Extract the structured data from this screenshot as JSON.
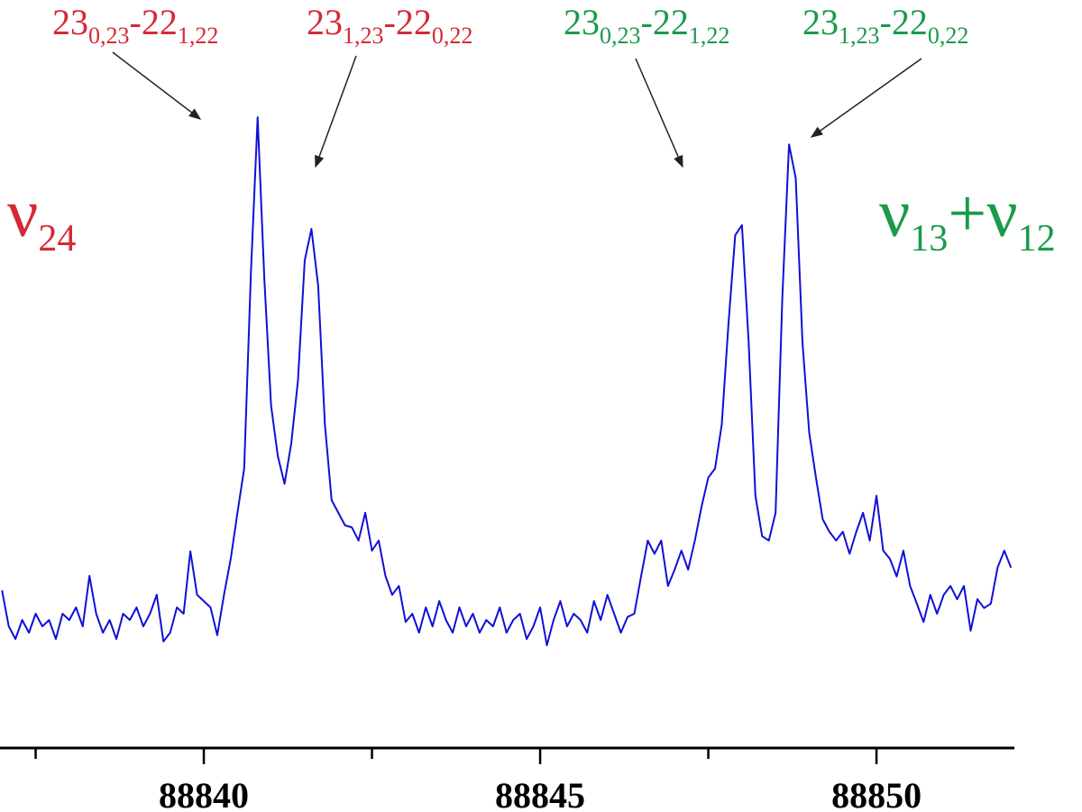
{
  "chart_data": {
    "type": "line",
    "x": [
      88837.0,
      88837.1,
      88837.2,
      88837.3,
      88837.4,
      88837.5,
      88837.6,
      88837.7,
      88837.8,
      88837.9,
      88838.0,
      88838.1,
      88838.2,
      88838.3,
      88838.4,
      88838.5,
      88838.6,
      88838.7,
      88838.8,
      88838.9,
      88839.0,
      88839.1,
      88839.2,
      88839.3,
      88839.4,
      88839.5,
      88839.6,
      88839.7,
      88839.8,
      88839.9,
      88840.0,
      88840.1,
      88840.2,
      88840.3,
      88840.4,
      88840.5,
      88840.6,
      88840.7,
      88840.8,
      88840.9,
      88841.0,
      88841.1,
      88841.2,
      88841.3,
      88841.4,
      88841.5,
      88841.6,
      88841.7,
      88841.8,
      88841.9,
      88842.0,
      88842.1,
      88842.2,
      88842.3,
      88842.4,
      88842.5,
      88842.6,
      88842.7,
      88842.8,
      88842.9,
      88843.0,
      88843.1,
      88843.2,
      88843.3,
      88843.4,
      88843.5,
      88843.6,
      88843.7,
      88843.8,
      88843.9,
      88844.0,
      88844.1,
      88844.2,
      88844.3,
      88844.4,
      88844.5,
      88844.6,
      88844.7,
      88844.8,
      88844.9,
      88845.0,
      88845.1,
      88845.2,
      88845.3,
      88845.4,
      88845.5,
      88845.6,
      88845.7,
      88845.8,
      88845.9,
      88846.0,
      88846.1,
      88846.2,
      88846.3,
      88846.4,
      88846.5,
      88846.6,
      88846.7,
      88846.8,
      88846.9,
      88847.0,
      88847.1,
      88847.2,
      88847.3,
      88847.4,
      88847.5,
      88847.6,
      88847.7,
      88847.8,
      88847.9,
      88848.0,
      88848.1,
      88848.2,
      88848.3,
      88848.4,
      88848.5,
      88848.6,
      88848.7,
      88848.8,
      88848.9,
      88849.0,
      88849.1,
      88849.2,
      88849.3,
      88849.4,
      88849.5,
      88849.6,
      88849.7,
      88849.8,
      88849.9,
      88850.0,
      88850.1,
      88850.2,
      88850.3,
      88850.4,
      88850.5,
      88850.6,
      88850.7,
      88850.8,
      88850.9,
      88851.0,
      88851.1,
      88851.2,
      88851.3,
      88851.4,
      88851.5,
      88851.6,
      88851.7,
      88851.8,
      88851.9,
      88852.0
    ],
    "series": [
      {
        "color": "#1010d8",
        "values": [
          20.7,
          15,
          13,
          16,
          14,
          17,
          15,
          16,
          13,
          17,
          16,
          18,
          15,
          23,
          17,
          14,
          16,
          13,
          17,
          16,
          18,
          15,
          17,
          20,
          12.6,
          14,
          18,
          17,
          26.9,
          20,
          19,
          18,
          13.6,
          20,
          25.7,
          33,
          40,
          71,
          95.7,
          70,
          50,
          42,
          37.6,
          44,
          54,
          73,
          78,
          69,
          47,
          35,
          33,
          31,
          30.7,
          28.6,
          33,
          27,
          28.6,
          23,
          20,
          21.4,
          15.7,
          17,
          14,
          18,
          15,
          19,
          16,
          14,
          18,
          15,
          17,
          14,
          16,
          15,
          18,
          14,
          16,
          17,
          13,
          15,
          18,
          12,
          16,
          19,
          15,
          17,
          16,
          14,
          19,
          16,
          20,
          17,
          14,
          16.5,
          17,
          22.9,
          28.6,
          26.5,
          28.6,
          21.4,
          24,
          27,
          24,
          28.6,
          34,
          38.6,
          40,
          47,
          63,
          77,
          78.6,
          60,
          35.7,
          29.3,
          28.6,
          33,
          67,
          91.4,
          86,
          60,
          45.7,
          38.6,
          32,
          30,
          28.6,
          30,
          26.5,
          30,
          33,
          28.6,
          35.7,
          27,
          25.7,
          22.9,
          27,
          21.4,
          18.6,
          15.7,
          20,
          17,
          20,
          21.4,
          19.3,
          21.4,
          14.3,
          19.3,
          17.9,
          18.6,
          24.3,
          27,
          24.3
        ]
      }
    ],
    "xlim": [
      88836.97,
      88852.05
    ],
    "xticks": [
      88840,
      88845,
      88850
    ],
    "xminor_ticks": [
      88837.5,
      88842.5,
      88847.5
    ],
    "ylim": [
      0,
      100
    ],
    "annotations": [
      {
        "color": "#d42a35",
        "parts": [
          [
            "23",
            "0,23"
          ],
          [
            "-22",
            "1,22"
          ]
        ]
      },
      {
        "color": "#d42a35",
        "parts": [
          [
            "23",
            "1,23"
          ],
          [
            "-22",
            "0,22"
          ]
        ]
      },
      {
        "color": "#1a9a4a",
        "parts": [
          [
            "23",
            "0,23"
          ],
          [
            "-22",
            "1,22"
          ]
        ]
      },
      {
        "color": "#1a9a4a",
        "parts": [
          [
            "23",
            "1,23"
          ],
          [
            "-22",
            "0,22"
          ]
        ]
      }
    ],
    "band_labels": [
      {
        "color": "#d42a35",
        "parts": [
          [
            "ν",
            "24"
          ]
        ]
      },
      {
        "color": "#1a9a4a",
        "parts": [
          [
            "ν",
            "13"
          ],
          [
            "+ν",
            "12"
          ]
        ]
      }
    ]
  }
}
